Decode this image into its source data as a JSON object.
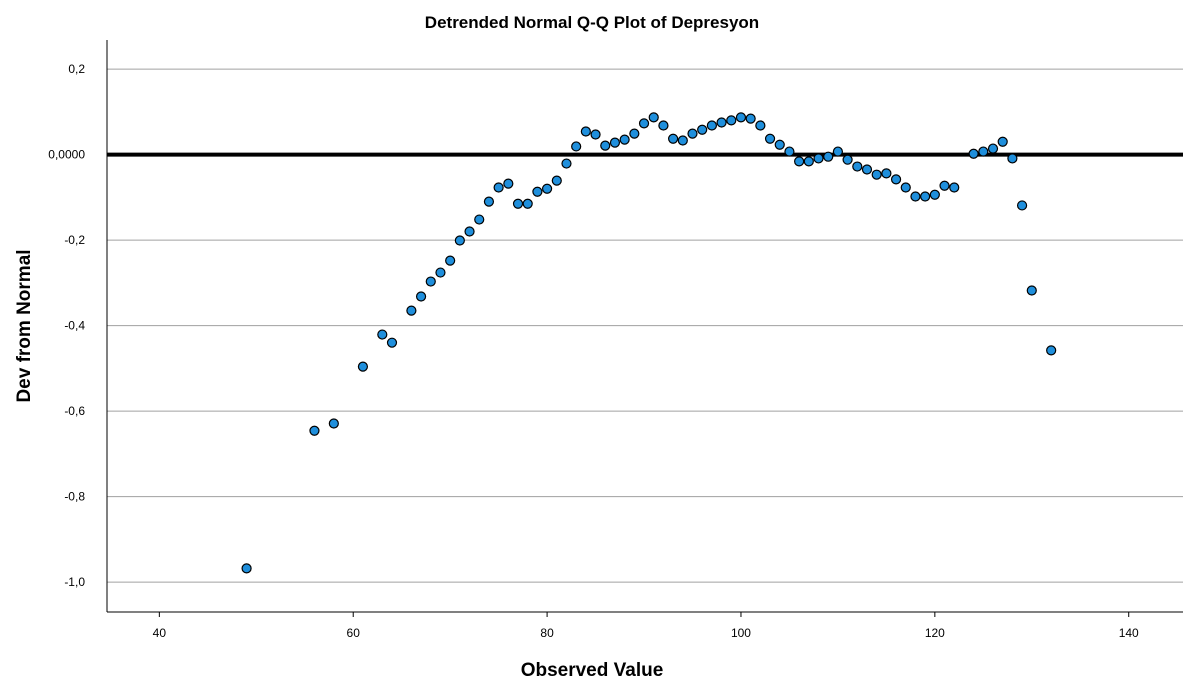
{
  "chart_data": {
    "type": "scatter",
    "title": "Detrended Normal Q-Q Plot of Depresyon",
    "x_label": "Observed Value",
    "y_label": "Dev from Normal",
    "x": [
      49,
      56,
      58,
      61,
      63,
      64,
      66,
      67,
      68,
      69,
      70,
      71,
      72,
      73,
      74,
      75,
      76,
      77,
      78,
      79,
      80,
      81,
      82,
      83,
      84,
      85,
      86,
      87,
      88,
      89,
      90,
      91,
      92,
      93,
      94,
      95,
      96,
      97,
      98,
      99,
      100,
      101,
      102,
      103,
      104,
      105,
      106,
      107,
      108,
      109,
      110,
      111,
      112,
      113,
      114,
      115,
      116,
      117,
      118,
      119,
      120,
      121,
      122,
      124,
      125,
      126,
      127,
      128,
      129,
      130,
      132
    ],
    "values": [
      -0.968,
      -0.646,
      -0.629,
      -0.496,
      -0.421,
      -0.44,
      -0.365,
      -0.332,
      -0.297,
      -0.276,
      -0.248,
      -0.201,
      -0.18,
      -0.152,
      -0.11,
      -0.077,
      -0.068,
      -0.115,
      -0.115,
      -0.087,
      -0.08,
      -0.061,
      -0.021,
      0.019,
      0.054,
      0.047,
      0.021,
      0.028,
      0.035,
      0.049,
      0.073,
      0.087,
      0.068,
      0.037,
      0.033,
      0.049,
      0.058,
      0.068,
      0.075,
      0.08,
      0.087,
      0.084,
      0.068,
      0.037,
      0.023,
      0.007,
      -0.016,
      -0.016,
      -0.009,
      -0.005,
      0.007,
      -0.012,
      -0.028,
      -0.035,
      -0.047,
      -0.044,
      -0.058,
      -0.077,
      -0.098,
      -0.098,
      -0.094,
      -0.073,
      -0.077,
      0.002,
      0.007,
      0.014,
      0.03,
      -0.009,
      -0.119,
      -0.318,
      -0.458
    ],
    "color": "#1f8fdc",
    "reference_line": 0,
    "xlim": [
      34.6,
      145.6
    ],
    "xticks": [
      40,
      60,
      80,
      100,
      120,
      140
    ],
    "ylim": [
      -1.07,
      0.268
    ],
    "yticks": [
      {
        "value": 0.2,
        "label": "0,2"
      },
      {
        "value": 0,
        "label": "0,0000"
      },
      {
        "value": -0.2,
        "label": "-0,2"
      },
      {
        "value": -0.4,
        "label": "-0,4"
      },
      {
        "value": -0.6,
        "label": "-0,6"
      },
      {
        "value": -0.8,
        "label": "-0,8"
      },
      {
        "value": -1.0,
        "label": "-1,0"
      }
    ],
    "grid": true
  }
}
